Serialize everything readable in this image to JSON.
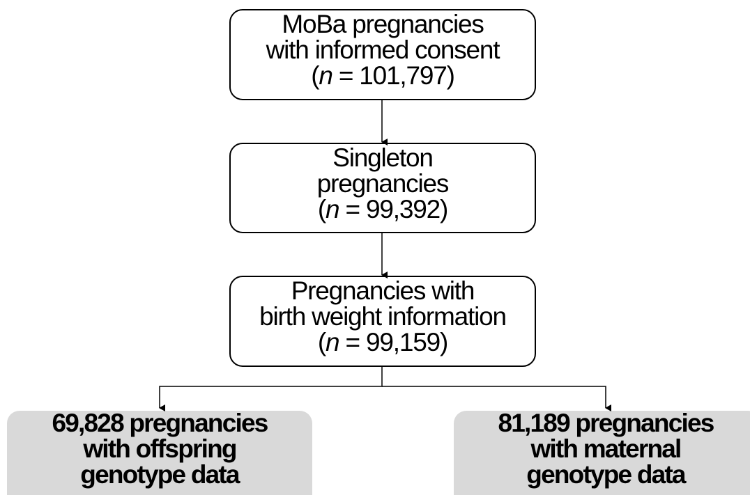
{
  "nodes": [
    {
      "lines": [
        "MoBa pregnancies",
        "with informed consent"
      ],
      "count": {
        "open": "(",
        "symbol": "n",
        "rest": " = 101,797)"
      }
    },
    {
      "lines": [
        "Singleton",
        "pregnancies"
      ],
      "count": {
        "open": "(",
        "symbol": "n",
        "rest": " = 99,392)"
      }
    },
    {
      "lines": [
        "Pregnancies with",
        "birth weight information"
      ],
      "count": {
        "open": "(",
        "symbol": "n",
        "rest": " = 99,159)"
      }
    },
    {
      "lines": [
        "69,828 pregnancies",
        "with offspring",
        "genotype data"
      ]
    },
    {
      "lines": [
        "81,189 pregnancies",
        "with maternal",
        "genotype data"
      ]
    }
  ]
}
